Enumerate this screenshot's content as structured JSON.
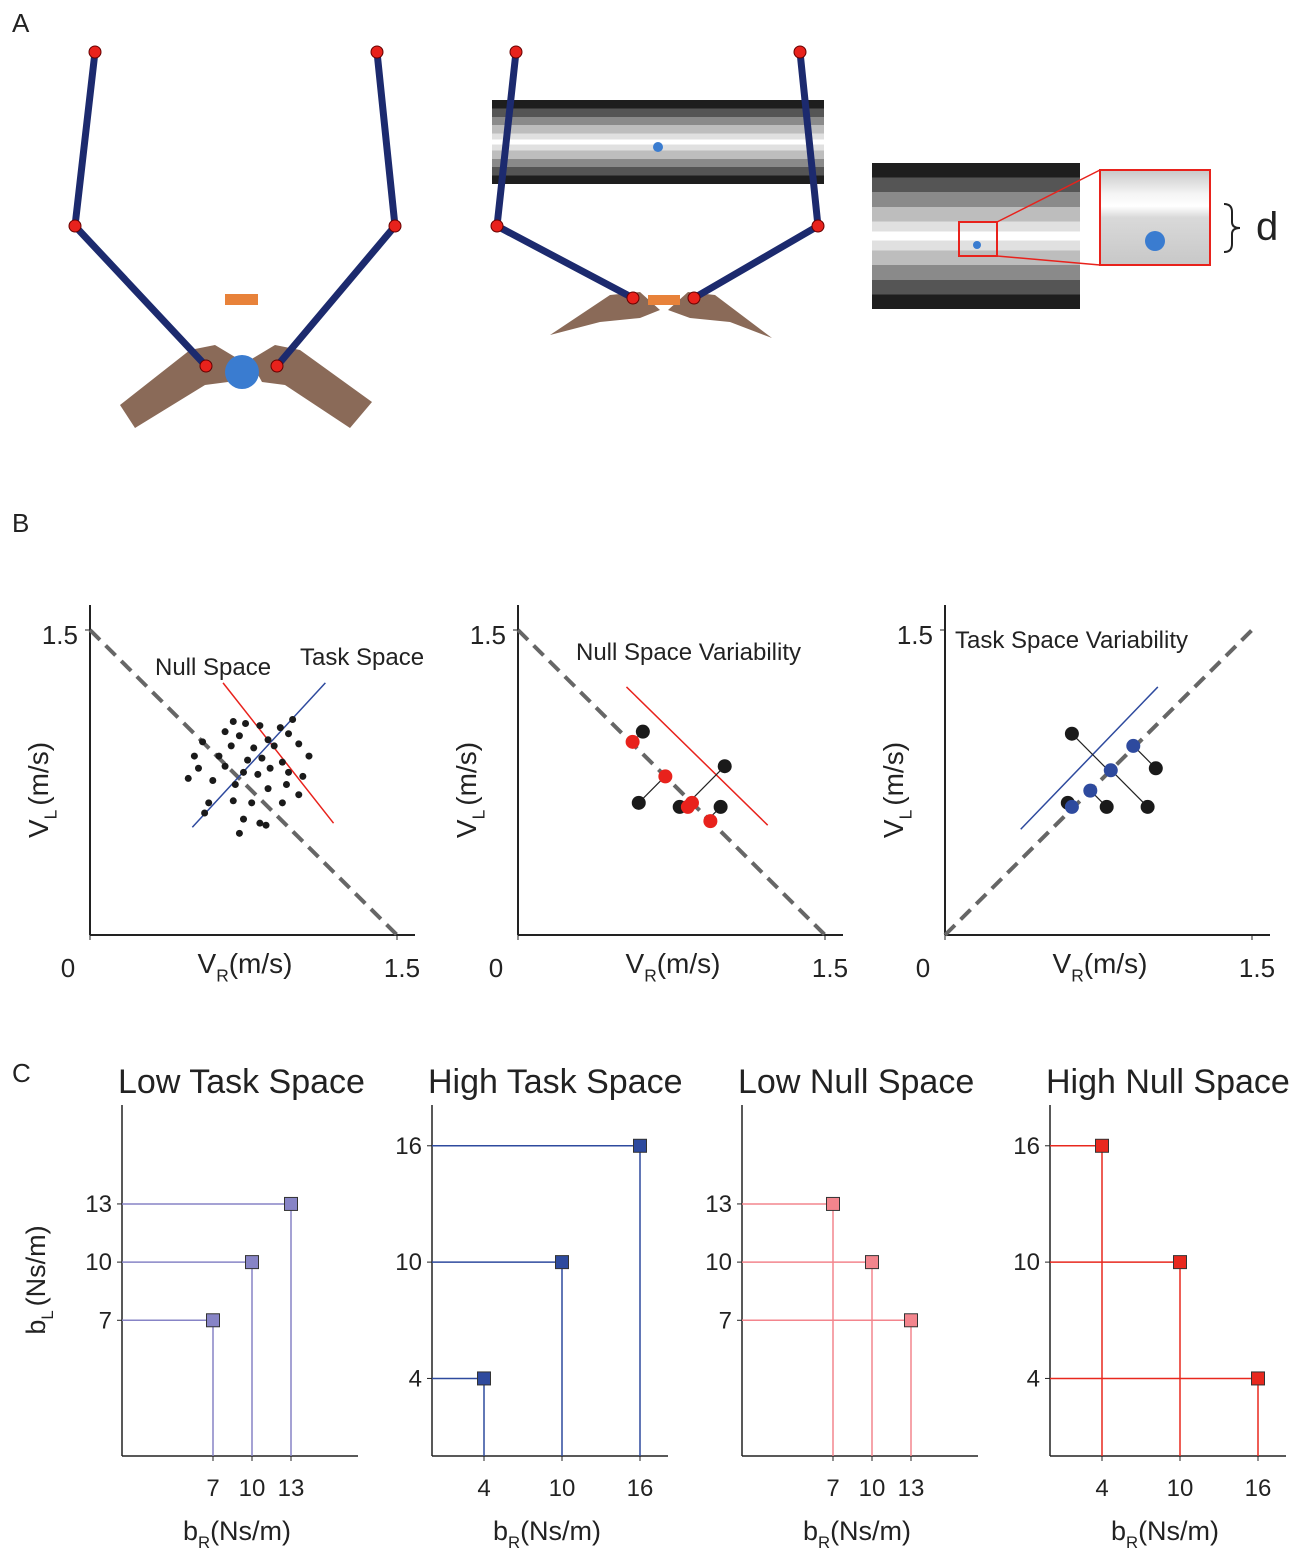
{
  "panel_labels": [
    "A",
    "B",
    "C"
  ],
  "panel_a": {
    "zoom_label": "d"
  },
  "chart_data": [
    {
      "type": "scatter",
      "marker": "circle",
      "xlim": [
        0,
        1.5
      ],
      "ylim": [
        0,
        1.5
      ],
      "xticks": [
        0,
        1.5
      ],
      "yticks": [
        1.5
      ],
      "xlabel": {
        "symbol": "V",
        "subscript": "R",
        "unit": "(m/s)"
      },
      "ylabel": {
        "symbol": "V",
        "subscript": "L",
        "unit": "(m/s)"
      },
      "annotations": [
        "Null Space",
        "Task Space"
      ],
      "reference_line": {
        "x": [
          0,
          1.5
        ],
        "y": [
          1.5,
          0
        ]
      },
      "lines": [
        {
          "color": "#e8221c",
          "x": [
            0.65,
            1.19
          ],
          "y": [
            1.24,
            0.55
          ]
        },
        {
          "color": "#2e4a9e",
          "x": [
            0.5,
            1.15
          ],
          "y": [
            0.53,
            1.24
          ]
        }
      ],
      "series": [
        {
          "color": "#1a1a1a",
          "x": [
            0.7,
            0.76,
            0.83,
            0.93,
            0.99,
            0.66,
            0.73,
            0.87,
            0.97,
            0.55,
            0.69,
            0.8,
            0.9,
            1.02,
            0.51,
            0.63,
            0.77,
            0.84,
            0.94,
            1.07,
            0.53,
            0.66,
            0.75,
            0.82,
            0.88,
            0.97,
            1.04,
            0.48,
            0.6,
            0.71,
            0.87,
            0.96,
            1.02,
            0.58,
            0.7,
            0.79,
            0.94,
            0.56,
            0.75,
            0.83,
            0.86,
            0.73
          ],
          "y": [
            1.05,
            1.04,
            1.03,
            1.02,
            1.06,
            1.0,
            0.98,
            0.96,
            0.99,
            0.95,
            0.93,
            0.92,
            0.93,
            0.94,
            0.88,
            0.88,
            0.86,
            0.87,
            0.85,
            0.88,
            0.82,
            0.83,
            0.8,
            0.79,
            0.82,
            0.8,
            0.78,
            0.77,
            0.76,
            0.74,
            0.72,
            0.74,
            0.69,
            0.65,
            0.66,
            0.65,
            0.65,
            0.6,
            0.57,
            0.55,
            0.54,
            0.5
          ]
        }
      ]
    },
    {
      "type": "scatter",
      "marker": "circle",
      "xlim": [
        0,
        1.5
      ],
      "ylim": [
        0,
        1.5
      ],
      "xticks": [
        0,
        1.5
      ],
      "yticks": [
        1.5
      ],
      "xlabel": {
        "symbol": "V",
        "subscript": "R",
        "unit": "(m/s)"
      },
      "ylabel": {
        "symbol": "V",
        "subscript": "L",
        "unit": "(m/s)"
      },
      "annotations": [
        "Null Space Variability"
      ],
      "reference_line": {
        "x": [
          0,
          1.5
        ],
        "y": [
          1.5,
          0
        ]
      },
      "lines": [
        {
          "color": "#e8221c",
          "x": [
            0.53,
            1.22
          ],
          "y": [
            1.22,
            0.54
          ]
        }
      ],
      "series": [
        {
          "color": "#1a1a1a",
          "x": [
            0.61,
            0.59,
            1.01,
            0.79,
            0.99
          ],
          "y": [
            1.0,
            0.65,
            0.83,
            0.63,
            0.63
          ]
        },
        {
          "color": "#e8221c",
          "x": [
            0.56,
            0.72,
            0.85,
            0.83,
            0.94
          ],
          "y": [
            0.95,
            0.78,
            0.65,
            0.63,
            0.56
          ]
        }
      ]
    },
    {
      "type": "scatter",
      "marker": "circle",
      "xlim": [
        0,
        1.5
      ],
      "ylim": [
        0,
        1.5
      ],
      "xticks": [
        0,
        1.5
      ],
      "yticks": [
        1.5
      ],
      "xlabel": {
        "symbol": "V",
        "subscript": "R",
        "unit": "(m/s)"
      },
      "ylabel": {
        "symbol": "V",
        "subscript": "L",
        "unit": "(m/s)"
      },
      "annotations": [
        "Task Space Variability"
      ],
      "reference_line": {
        "x": [
          0,
          1.5
        ],
        "y": [
          0,
          1.5
        ]
      },
      "lines": [
        {
          "color": "#2e4a9e",
          "x": [
            0.37,
            1.04
          ],
          "y": [
            0.52,
            1.22
          ]
        }
      ],
      "series": [
        {
          "color": "#1a1a1a",
          "x": [
            0.62,
            0.6,
            0.79,
            0.99,
            1.03
          ],
          "y": [
            0.99,
            0.65,
            0.63,
            0.63,
            0.82
          ]
        },
        {
          "color": "#2e4a9e",
          "x": [
            0.92,
            0.81,
            0.71,
            0.62
          ],
          "y": [
            0.93,
            0.81,
            0.71,
            0.63
          ]
        }
      ]
    },
    {
      "type": "scatter",
      "marker": "square",
      "drop_lines": true,
      "title": "Low Task Space",
      "xlim": [
        0,
        18
      ],
      "ylim": [
        0,
        18
      ],
      "xticks": [
        7,
        10,
        13
      ],
      "yticks": [
        7,
        10,
        13
      ],
      "xlabel": {
        "symbol": "b",
        "subscript": "R",
        "unit": "(Ns/m)"
      },
      "ylabel": {
        "symbol": "b",
        "subscript": "L",
        "unit": "(Ns/m)"
      },
      "series": [
        {
          "color": "#8784c6",
          "x": [
            7,
            10,
            13
          ],
          "y": [
            7,
            10,
            13
          ]
        }
      ]
    },
    {
      "type": "scatter",
      "marker": "square",
      "drop_lines": true,
      "title": "High Task Space",
      "xlim": [
        0,
        18
      ],
      "ylim": [
        0,
        18
      ],
      "xticks": [
        4,
        10,
        16
      ],
      "yticks": [
        4,
        10,
        16
      ],
      "xlabel": {
        "symbol": "b",
        "subscript": "R",
        "unit": "(Ns/m)"
      },
      "series": [
        {
          "color": "#2e4a9e",
          "x": [
            4,
            10,
            16
          ],
          "y": [
            4,
            10,
            16
          ]
        }
      ]
    },
    {
      "type": "scatter",
      "marker": "square",
      "drop_lines": true,
      "title": "Low Null Space",
      "xlim": [
        0,
        18
      ],
      "ylim": [
        0,
        18
      ],
      "xticks": [
        7,
        10,
        13
      ],
      "yticks": [
        7,
        10,
        13
      ],
      "xlabel": {
        "symbol": "b",
        "subscript": "R",
        "unit": "(Ns/m)"
      },
      "series": [
        {
          "color": "#f3858d",
          "x": [
            13,
            10,
            7
          ],
          "y": [
            7,
            10,
            13
          ]
        }
      ]
    },
    {
      "type": "scatter",
      "marker": "square",
      "drop_lines": true,
      "title": "High Null Space",
      "xlim": [
        0,
        18
      ],
      "ylim": [
        0,
        18
      ],
      "xticks": [
        4,
        10,
        16
      ],
      "yticks": [
        4,
        10,
        16
      ],
      "xlabel": {
        "symbol": "b",
        "subscript": "R",
        "unit": "(Ns/m)"
      },
      "series": [
        {
          "color": "#e8281e",
          "x": [
            16,
            10,
            4
          ],
          "y": [
            4,
            10,
            16
          ]
        }
      ]
    }
  ]
}
